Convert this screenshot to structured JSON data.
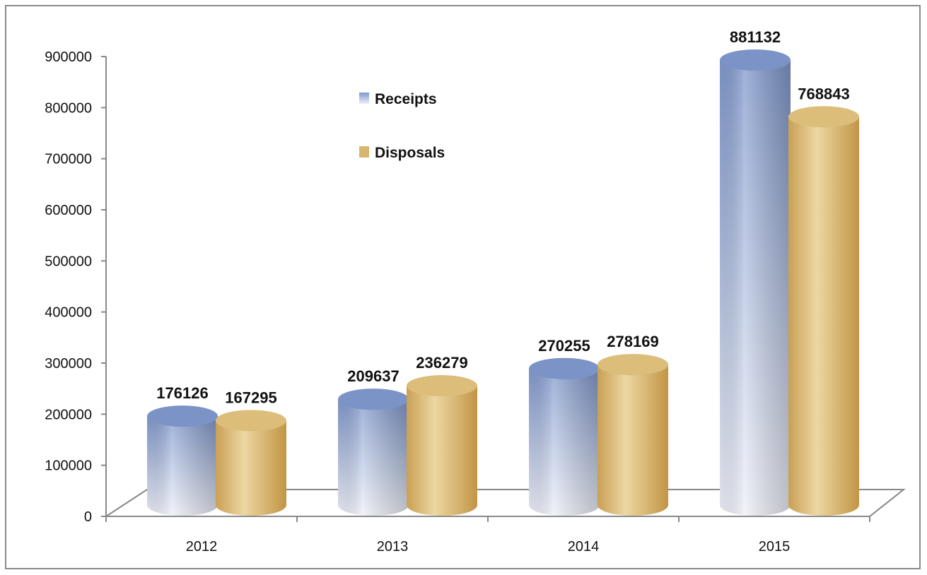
{
  "chart_data": {
    "type": "bar",
    "style": "3d-cylinder",
    "title": "",
    "xlabel": "",
    "ylabel": "",
    "categories": [
      "2012",
      "2013",
      "2014",
      "2015"
    ],
    "series": [
      {
        "name": "Receipts",
        "values": [
          176126,
          209637,
          270255,
          881132
        ],
        "color": "#8fa6d4"
      },
      {
        "name": "Disposals",
        "values": [
          167295,
          236279,
          278169,
          768843
        ],
        "color": "#d9b66e"
      }
    ],
    "yticks": [
      "0",
      "100000",
      "200000",
      "300000",
      "400000",
      "500000",
      "600000",
      "700000",
      "800000",
      "900000"
    ],
    "ylim": [
      0,
      900000
    ],
    "grid": false,
    "legend": "top-center-inside",
    "data_labels": true
  }
}
